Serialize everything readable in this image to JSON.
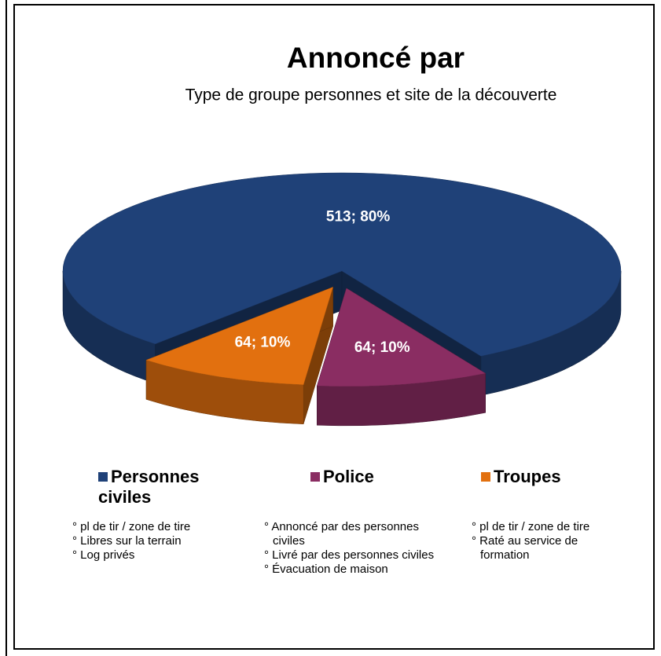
{
  "chart_data": {
    "type": "pie",
    "title": "Annoncé par",
    "subtitle": "Type de groupe personnes et site de la découverte",
    "categories": [
      "Personnes civiles",
      "Police",
      "Troupes"
    ],
    "values": [
      513,
      64,
      64
    ],
    "value_labels": [
      "513; 80%",
      "64; 10%",
      "64; 10%"
    ],
    "colors": [
      "#1f4178",
      "#8a2d62",
      "#e2700f"
    ],
    "legend_notes": [
      [
        "° pl de tir / zone de tire",
        "° Libres sur la terrain",
        "° Log privés"
      ],
      [
        "° Annoncé par des personnes civiles",
        "° Livré par des personnes civiles",
        "° Évacuation de maison"
      ],
      [
        "° pl de tir / zone de tire",
        "° Raté au service de formation"
      ]
    ]
  }
}
